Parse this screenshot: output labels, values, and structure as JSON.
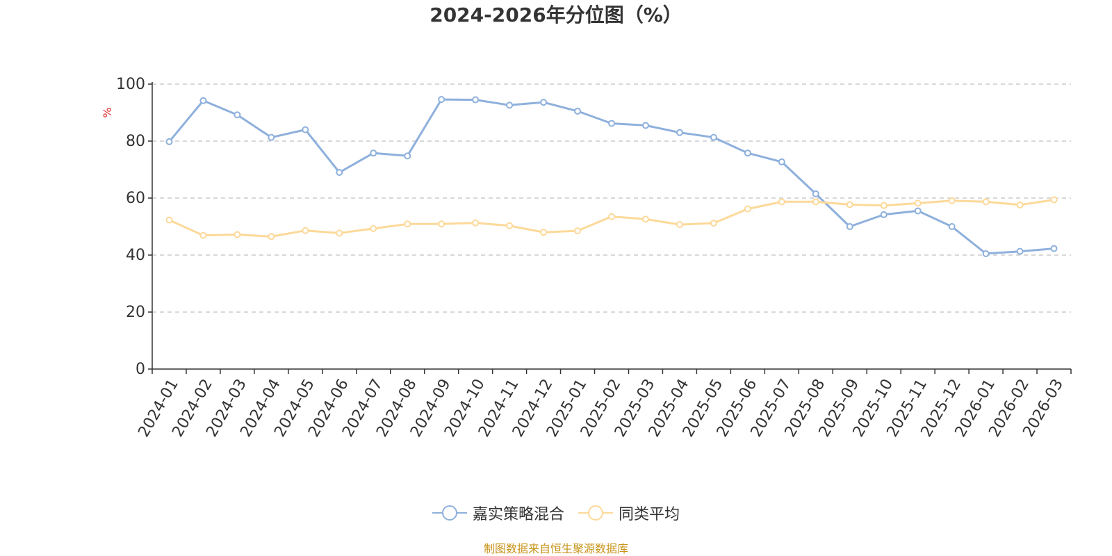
{
  "title": "2024-2026年分位图（%）",
  "source_note": "制图数据来自恒生聚源数据库",
  "colors": {
    "series1": "#8eb0dc",
    "series2": "#fcd999",
    "ylabel": "#e03030",
    "grid": "#cccccc",
    "axis": "#333333",
    "source": "#c8941a"
  },
  "chart_data": {
    "type": "line",
    "title": "2024-2026年分位图（%）",
    "ylabel": "%",
    "xlabel": "",
    "ylim": [
      0,
      100
    ],
    "yticks": [
      0,
      20,
      40,
      60,
      80,
      100
    ],
    "grid": true,
    "legend_position": "bottom-center",
    "categories": [
      "2024-01",
      "2024-02",
      "2024-03",
      "2024-04",
      "2024-05",
      "2024-06",
      "2024-07",
      "2024-08",
      "2024-09",
      "2024-10",
      "2024-11",
      "2024-12",
      "2025-01",
      "2025-02",
      "2025-03",
      "2025-04",
      "2025-05",
      "2025-06",
      "2025-07",
      "2025-08",
      "2025-09",
      "2025-10",
      "2025-11",
      "2025-12",
      "2026-01",
      "2026-02",
      "2026-03"
    ],
    "series": [
      {
        "name": "嘉实策略混合",
        "values": [
          79.8,
          94.2,
          89.2,
          81.3,
          84.0,
          69.0,
          75.8,
          74.8,
          94.6,
          94.5,
          92.6,
          93.6,
          90.5,
          86.2,
          85.5,
          83.0,
          81.3,
          75.8,
          72.7,
          61.5,
          50.0,
          54.2,
          55.5,
          50.0,
          40.5,
          41.3,
          42.3
        ]
      },
      {
        "name": "同类平均",
        "values": [
          52.3,
          46.9,
          47.2,
          46.5,
          48.6,
          47.7,
          49.3,
          50.9,
          50.9,
          51.3,
          50.3,
          48.0,
          48.5,
          53.5,
          52.6,
          50.7,
          51.2,
          56.2,
          58.7,
          58.7,
          57.7,
          57.4,
          58.2,
          59.1,
          58.7,
          57.6,
          59.4
        ]
      }
    ]
  }
}
